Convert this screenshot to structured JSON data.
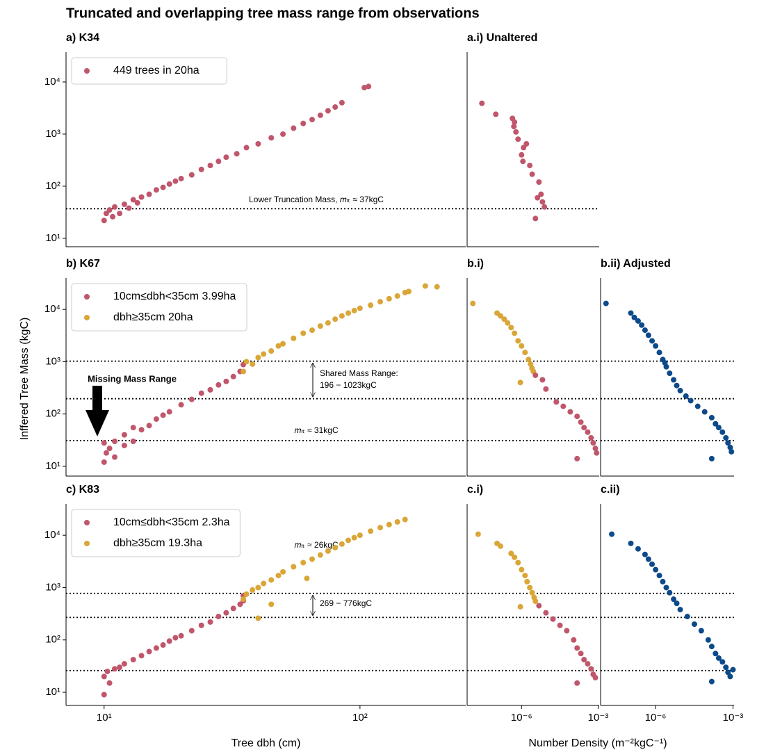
{
  "title": "Truncated and overlapping tree mass range from observations",
  "ylabel": "Inffered Tree Mass (kgC)",
  "xlabel_density": "Number Density (m⁻²kgC⁻¹)",
  "chart_data": [
    {
      "type": "scatter",
      "title": "a) K34",
      "log_x": true,
      "log_y": true,
      "legend": "upper left",
      "xlim": [
        7.1,
        259
      ],
      "ylim": [
        6.9,
        37400
      ],
      "yticks": [
        {
          "value": 10,
          "label": "10¹"
        },
        {
          "value": 100,
          "label": "10²"
        },
        {
          "value": 1000,
          "label": "10³"
        },
        {
          "value": 10000,
          "label": "10⁴"
        }
      ],
      "hlines": [
        37
      ],
      "annotations": [
        "Lower Truncation Mass, 𝑚ₗₜ ≈ 37kgC"
      ],
      "series": [
        {
          "name": "449 trees in 20ha",
          "color": "#c0566b",
          "x": [
            10,
            10.2,
            10.5,
            10.8,
            11,
            11.5,
            12,
            12.5,
            13,
            13.5,
            14,
            15,
            16,
            17,
            18,
            19,
            20,
            22,
            24,
            26,
            28,
            30,
            33,
            36,
            40,
            45,
            50,
            55,
            60,
            65,
            70,
            75,
            80,
            85,
            104,
            108
          ],
          "y": [
            22,
            30,
            35,
            26,
            40,
            30,
            45,
            38,
            55,
            48,
            62,
            70,
            85,
            95,
            110,
            125,
            140,
            165,
            210,
            250,
            300,
            360,
            420,
            550,
            650,
            850,
            1000,
            1300,
            1600,
            1900,
            2300,
            2800,
            3300,
            4000,
            7800,
            8200
          ]
        }
      ]
    },
    {
      "type": "scatter",
      "title": "a.i) Unaltered",
      "log_x": true,
      "log_y": true,
      "xlim": [
        7.4e-09,
        0.0011
      ],
      "ylim": [
        6.9,
        37400
      ],
      "hlines": [
        37
      ],
      "series": [
        {
          "color": "#c0566b",
          "x": [
            2.8e-08,
            9.8e-08,
            4.4e-07,
            5.3e-07,
            5e-07,
            6.05e-07,
            7.3e-07,
            1.55e-06,
            1.2e-06,
            1e-06,
            1.13e-06,
            2.1e-06,
            2.6e-06,
            4.8e-06,
            5.8e-06,
            4.2e-06,
            6.6e-06,
            7.9e-06,
            3.5e-06
          ],
          "y": [
            3900,
            2400,
            2000,
            1700,
            1400,
            1100,
            800,
            650,
            550,
            400,
            300,
            250,
            170,
            120,
            70,
            60,
            50,
            40,
            24
          ]
        }
      ]
    },
    {
      "type": "scatter",
      "title": "b) K67",
      "log_x": true,
      "log_y": true,
      "legend": "upper left",
      "xlim": [
        7.1,
        259
      ],
      "ylim": [
        6.5,
        39800
      ],
      "yticks": [
        {
          "value": 10,
          "label": "10¹"
        },
        {
          "value": 100,
          "label": "10²"
        },
        {
          "value": 1000,
          "label": "10³"
        },
        {
          "value": 10000,
          "label": "10⁴"
        }
      ],
      "hlines": [
        1023,
        196,
        31
      ],
      "annotations": [
        "Shared Mass Range:",
        "196 − 1023kgC",
        "𝑚ₗₜ ≈ 31kgC",
        "Missing Mass Range"
      ],
      "series": [
        {
          "name": "10cm≤dbh<35cm 3.99ha",
          "color": "#c0566b",
          "x": [
            10,
            10,
            10.2,
            10.5,
            11,
            11,
            12,
            12,
            13,
            13,
            14,
            15,
            16,
            17,
            18,
            20,
            22,
            24,
            26,
            28,
            30,
            32,
            34,
            35
          ],
          "y": [
            12,
            28,
            18,
            22,
            15,
            30,
            25,
            40,
            30,
            55,
            50,
            60,
            80,
            95,
            110,
            150,
            190,
            250,
            290,
            360,
            420,
            520,
            650,
            880
          ]
        },
        {
          "name": "dbh≥35cm 20ha",
          "color": "#d9a637",
          "x": [
            35,
            36,
            38,
            40,
            42,
            45,
            48,
            50,
            55,
            60,
            65,
            70,
            75,
            80,
            85,
            90,
            95,
            100,
            110,
            120,
            130,
            140,
            150,
            155,
            180,
            200
          ],
          "y": [
            650,
            1000,
            900,
            1200,
            1400,
            1600,
            2000,
            2200,
            2800,
            3500,
            4000,
            4800,
            5500,
            6500,
            7500,
            8500,
            9500,
            10500,
            12000,
            14000,
            16000,
            18000,
            21000,
            22000,
            28000,
            27000
          ]
        }
      ]
    },
    {
      "type": "scatter",
      "title": "b.i)",
      "log_x": true,
      "log_y": true,
      "xlim": [
        7.4e-09,
        0.0011
      ],
      "ylim": [
        6.5,
        39800
      ],
      "hlines": [
        1023,
        196,
        31
      ],
      "series": [
        {
          "color": "#d9a637",
          "x": [
            1.24e-08,
            1.1e-07,
            1.5e-07,
            2.1e-07,
            2.85e-07,
            3.9e-07,
            5.3e-07,
            7.3e-07,
            1e-06,
            1.37e-06,
            1.87e-06,
            2.26e-06,
            2.56e-06,
            2.9e-06,
            9e-07
          ],
          "y": [
            13000,
            8500,
            7500,
            6500,
            5500,
            4500,
            3500,
            2500,
            2000,
            1500,
            1100,
            900,
            750,
            650,
            400
          ]
        },
        {
          "color": "#c0566b",
          "x": [
            3.5e-06,
            6.6e-06,
            9e-06,
            2.3e-05,
            4.3e-05,
            8.1e-05,
            0.00015,
            0.00021,
            0.00028,
            0.00039,
            0.00053,
            0.00064,
            0.00078,
            0.00087,
            0.00015
          ],
          "y": [
            550,
            450,
            300,
            170,
            140,
            110,
            90,
            70,
            55,
            45,
            35,
            28,
            22,
            18,
            14
          ]
        }
      ]
    },
    {
      "type": "scatter",
      "title": "b.ii) Adjusted",
      "log_x": true,
      "log_y": true,
      "xlim": [
        7.4e-09,
        0.0011
      ],
      "ylim": [
        6.5,
        39800
      ],
      "hlines": [
        1023,
        196,
        31
      ],
      "series": [
        {
          "color": "#0d4a8a",
          "x": [
            1.2e-08,
            1.1e-07,
            1.5e-07,
            2.1e-07,
            2.9e-07,
            3.9e-07,
            5.3e-07,
            7.3e-07,
            1e-06,
            1.4e-06,
            1.9e-06,
            2.3e-06,
            2.6e-06,
            3.5e-06,
            5e-06,
            6.6e-06,
            9e-06,
            1.5e-05,
            2.3e-05,
            4.3e-05,
            8e-05,
            0.00015,
            0.00021,
            0.00028,
            0.00039,
            0.00053,
            0.00064,
            0.00078,
            0.00087,
            0.00015
          ],
          "y": [
            13000,
            8500,
            7000,
            6000,
            5000,
            4000,
            3200,
            2500,
            2000,
            1500,
            1100,
            950,
            800,
            600,
            450,
            350,
            280,
            220,
            180,
            140,
            110,
            85,
            65,
            55,
            45,
            35,
            28,
            23,
            19,
            14
          ]
        }
      ]
    },
    {
      "type": "scatter",
      "title": "c) K83",
      "log_x": true,
      "log_y": true,
      "legend": "upper left",
      "xlim": [
        7.1,
        259
      ],
      "ylim": [
        5.6,
        39800
      ],
      "xlabel": "Tree dbh (cm)",
      "xticks": [
        {
          "value": 10,
          "label": "10¹"
        },
        {
          "value": 100,
          "label": "10²"
        }
      ],
      "yticks": [
        {
          "value": 10,
          "label": "10¹"
        },
        {
          "value": 100,
          "label": "10²"
        },
        {
          "value": 1000,
          "label": "10³"
        },
        {
          "value": 10000,
          "label": "10⁴"
        }
      ],
      "hlines": [
        776,
        269,
        26
      ],
      "annotations": [
        "269 − 776kgC",
        "𝑚ₗₜ ≈ 26kgC"
      ],
      "series": [
        {
          "name": "10cm≤dbh<35cm 2.3ha",
          "color": "#c0566b",
          "x": [
            10,
            10,
            10.3,
            10.5,
            11,
            11.5,
            12,
            13,
            14,
            15,
            16,
            17,
            18,
            19,
            20,
            22,
            24,
            26,
            28,
            30,
            32,
            34,
            35,
            35
          ],
          "y": [
            9,
            20,
            25,
            15,
            28,
            30,
            35,
            42,
            50,
            60,
            70,
            80,
            95,
            110,
            120,
            150,
            190,
            220,
            280,
            330,
            400,
            480,
            560,
            700
          ]
        },
        {
          "name": "dbh≥35cm 19.3ha",
          "color": "#d9a637",
          "x": [
            35,
            36,
            38,
            40,
            42,
            45,
            48,
            50,
            55,
            60,
            62,
            65,
            70,
            75,
            80,
            85,
            90,
            95,
            100,
            110,
            120,
            130,
            140,
            150,
            45,
            40
          ],
          "y": [
            600,
            750,
            900,
            1000,
            1200,
            1400,
            1700,
            2000,
            2500,
            3000,
            1500,
            3500,
            4200,
            5000,
            5800,
            6800,
            8000,
            9000,
            10000,
            12000,
            14000,
            16000,
            18000,
            20000,
            480,
            260
          ]
        }
      ]
    },
    {
      "type": "scatter",
      "title": "c.i)",
      "log_x": true,
      "log_y": true,
      "xlim": [
        7.4e-09,
        0.0011
      ],
      "ylim": [
        5.6,
        39800
      ],
      "hlines": [
        776,
        269,
        26
      ],
      "xticks": [
        {
          "value": 1e-06,
          "label": "10⁻⁶"
        },
        {
          "value": 0.001,
          "label": "10⁻³"
        }
      ],
      "series": [
        {
          "color": "#d9a637",
          "x": [
            2e-08,
            1.1e-07,
            1.5e-07,
            3.9e-07,
            5.3e-07,
            7.3e-07,
            1e-06,
            1.37e-06,
            1.65e-06,
            2.1e-06,
            2.6e-06,
            3.1e-06,
            3.5e-06,
            9e-07
          ],
          "y": [
            10500,
            7000,
            6200,
            4500,
            3800,
            3000,
            2200,
            1700,
            1300,
            1000,
            800,
            650,
            550,
            430
          ]
        },
        {
          "color": "#c0566b",
          "x": [
            4.8e-06,
            9e-06,
            1.7e-05,
            3.2e-05,
            5.9e-05,
            0.00011,
            0.00015,
            0.00021,
            0.00028,
            0.00039,
            0.00053,
            0.00064,
            0.00078,
            0.00015
          ],
          "y": [
            450,
            330,
            250,
            190,
            150,
            100,
            70,
            55,
            42,
            35,
            28,
            22,
            19,
            15
          ]
        }
      ]
    },
    {
      "type": "scatter",
      "title": "c.ii)",
      "log_x": true,
      "log_y": true,
      "xlim": [
        7.4e-09,
        0.0011
      ],
      "ylim": [
        5.6,
        39800
      ],
      "hlines": [
        776,
        269,
        26
      ],
      "xticks": [
        {
          "value": 1e-06,
          "label": "10⁻⁶"
        },
        {
          "value": 0.001,
          "label": "10⁻³"
        }
      ],
      "series": [
        {
          "color": "#0d4a8a",
          "x": [
            2e-08,
            1.1e-07,
            2.1e-07,
            3.9e-07,
            5.3e-07,
            7.3e-07,
            1e-06,
            1.4e-06,
            1.9e-06,
            2.6e-06,
            3.5e-06,
            5e-06,
            6.6e-06,
            9e-06,
            1.7e-05,
            3.2e-05,
            5.9e-05,
            0.00011,
            0.00015,
            0.00021,
            0.00028,
            0.00039,
            0.00053,
            0.00064,
            0.00078,
            0.001,
            0.00015
          ],
          "y": [
            10500,
            7000,
            5500,
            4300,
            3500,
            2800,
            2200,
            1700,
            1300,
            1000,
            800,
            600,
            500,
            380,
            280,
            200,
            150,
            100,
            75,
            55,
            45,
            38,
            30,
            24,
            20,
            27,
            16
          ]
        }
      ]
    }
  ]
}
